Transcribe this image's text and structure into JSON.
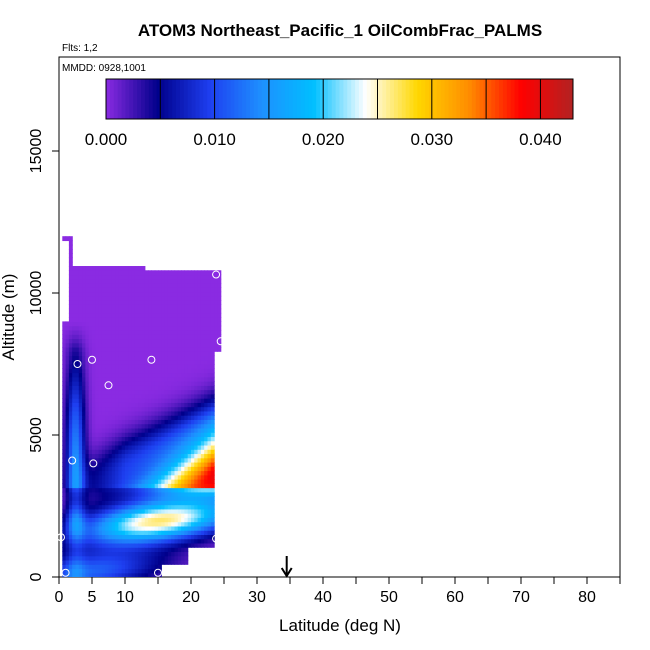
{
  "chart_data": {
    "type": "heatmap",
    "title": "ATOM3 Northeast_Pacific_1 OilCombFrac_PALMS",
    "flights_note": "Flts: 1,2",
    "date_note": "MMDD: 0928,1001",
    "xlabel": "Latitude (deg N)",
    "ylabel": "Altitude (m)",
    "xlim": [
      0,
      85
    ],
    "ylim": [
      0,
      17500
    ],
    "x_ticks": [
      0,
      5,
      10,
      20,
      30,
      40,
      50,
      60,
      70,
      80
    ],
    "y_ticks": [
      0,
      5000,
      10000,
      15000
    ],
    "colorbar": {
      "ticks": [
        "0.000",
        "0.010",
        "0.020",
        "0.030",
        "0.040"
      ],
      "tick_values": [
        0,
        0.01,
        0.02,
        0.03,
        0.04
      ],
      "range": [
        0,
        0.043
      ],
      "colors": [
        "#8a2be2",
        "#00008b",
        "#1e3ff0",
        "#1e90ff",
        "#00bfff",
        "#ffffff",
        "#ffd700",
        "#ff8c00",
        "#ff0000",
        "#b22222"
      ]
    },
    "arrow_latitude": 34.5,
    "sample_points": [
      {
        "lat": 1.0,
        "alt": 150
      },
      {
        "lat": 15.0,
        "alt": 150
      },
      {
        "lat": 0.3,
        "alt": 1400
      },
      {
        "lat": 23.8,
        "alt": 1350
      },
      {
        "lat": 2.0,
        "alt": 4100
      },
      {
        "lat": 5.2,
        "alt": 4000
      },
      {
        "lat": 2.8,
        "alt": 7500
      },
      {
        "lat": 5.0,
        "alt": 7650
      },
      {
        "lat": 7.5,
        "alt": 6750
      },
      {
        "lat": 14.0,
        "alt": 7650
      },
      {
        "lat": 24.5,
        "alt": 8300
      },
      {
        "lat": 23.8,
        "alt": 10650
      }
    ]
  }
}
